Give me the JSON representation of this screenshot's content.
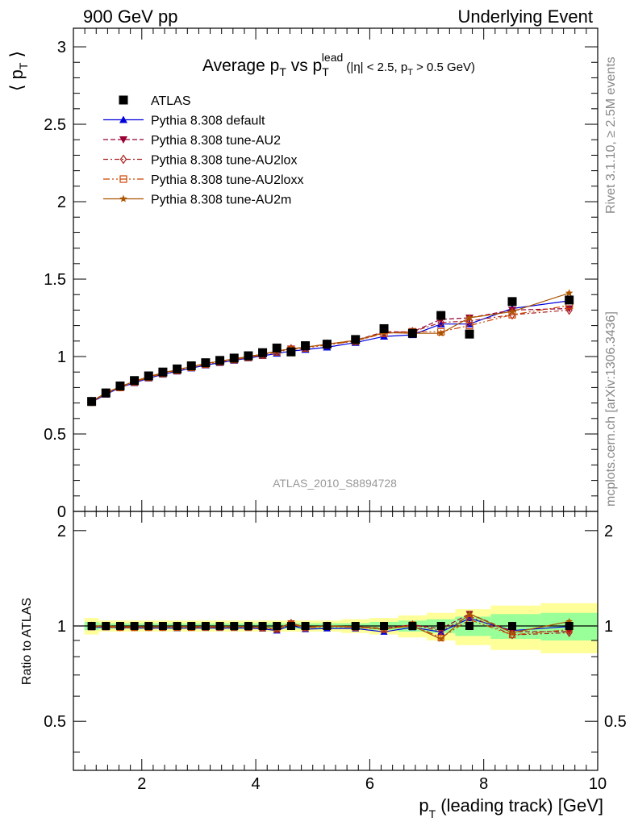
{
  "header": {
    "left": "900 GeV pp",
    "right": "Underlying Event"
  },
  "side_labels": {
    "upper": "Rivet 3.1.10, ≥ 2.5M events",
    "lower": "mcplots.cern.ch [arXiv:1306.3436]"
  },
  "watermark": "ATLAS_2010_S8894728",
  "title": {
    "main": "Average p",
    "main_sub": "T",
    "vs": " vs p",
    "vs_sub": "T",
    "vs_sup": "lead",
    "cuts_a": " (|η| < 2.5, p",
    "cuts_sub": "T",
    "cuts_b": " > 0.5 GeV)"
  },
  "ylabel_top": {
    "text": "⟨ p",
    "sub": "T",
    "close": " ⟩"
  },
  "ylabel_bottom": "Ratio to ATLAS",
  "xlabel": {
    "text": "p",
    "sub": "T",
    "rest": " (leading track) [GeV]"
  },
  "legend": [
    {
      "label": "ATLAS"
    },
    {
      "label": "Pythia 8.308 default"
    },
    {
      "label": "Pythia 8.308 tune-AU2"
    },
    {
      "label": "Pythia 8.308 tune-AU2lox"
    },
    {
      "label": "Pythia 8.308 tune-AU2loxx"
    },
    {
      "label": "Pythia 8.308 tune-AU2m"
    }
  ],
  "chart_data": {
    "type": "scatter",
    "x": [
      1.12,
      1.37,
      1.62,
      1.87,
      2.12,
      2.37,
      2.62,
      2.87,
      3.12,
      3.37,
      3.62,
      3.87,
      4.12,
      4.37,
      4.62,
      4.87,
      5.25,
      5.75,
      6.25,
      6.75,
      7.25,
      7.75,
      8.5,
      9.5
    ],
    "xlim": [
      0.8,
      10.0
    ],
    "xticks": [
      2,
      4,
      6,
      8,
      10
    ],
    "ylim_main": [
      0,
      3.12
    ],
    "yticks_main": [
      0,
      0.5,
      1,
      1.5,
      2,
      2.5,
      3
    ],
    "ylim_ratio": [
      0.35,
      2.3
    ],
    "yticks_ratio": [
      0.5,
      1,
      2
    ],
    "grid": false,
    "legend_position": "top-left",
    "bands": {
      "green_half_width": [
        0.03,
        0.02,
        0.02,
        0.02,
        0.02,
        0.02,
        0.02,
        0.02,
        0.02,
        0.02,
        0.02,
        0.02,
        0.02,
        0.02,
        0.02,
        0.02,
        0.02,
        0.02,
        0.03,
        0.04,
        0.05,
        0.07,
        0.09,
        0.1
      ],
      "yellow_half_width": [
        0.06,
        0.04,
        0.04,
        0.04,
        0.04,
        0.04,
        0.04,
        0.04,
        0.04,
        0.04,
        0.04,
        0.04,
        0.04,
        0.04,
        0.04,
        0.04,
        0.04,
        0.05,
        0.06,
        0.08,
        0.1,
        0.13,
        0.16,
        0.18
      ]
    },
    "series": [
      {
        "name": "ATLAS",
        "marker": "square",
        "color": "#000000",
        "line": "none",
        "values": [
          0.71,
          0.765,
          0.81,
          0.845,
          0.875,
          0.9,
          0.92,
          0.94,
          0.96,
          0.975,
          0.99,
          1.005,
          1.025,
          1.055,
          1.03,
          1.07,
          1.08,
          1.11,
          1.18,
          1.15,
          1.265,
          1.145,
          1.355,
          1.365
        ],
        "ratio": [
          1,
          1,
          1,
          1,
          1,
          1,
          1,
          1,
          1,
          1,
          1,
          1,
          1,
          1,
          1,
          1,
          1,
          1,
          1,
          1,
          1,
          1,
          1,
          1
        ]
      },
      {
        "name": "Pythia 8.308 default",
        "marker": "triangle-up",
        "color": "#0000dd",
        "line": "solid",
        "values": [
          0.705,
          0.755,
          0.8,
          0.83,
          0.86,
          0.885,
          0.905,
          0.925,
          0.945,
          0.96,
          0.975,
          0.99,
          1.005,
          1.02,
          1.035,
          1.045,
          1.06,
          1.09,
          1.13,
          1.14,
          1.21,
          1.21,
          1.31,
          1.36
        ],
        "ratio": [
          0.99,
          0.99,
          0.988,
          0.985,
          0.985,
          0.985,
          0.984,
          0.985,
          0.985,
          0.985,
          0.985,
          0.985,
          0.98,
          0.967,
          1.005,
          0.977,
          0.982,
          0.982,
          0.958,
          0.99,
          0.957,
          1.057,
          0.967,
          0.996
        ]
      },
      {
        "name": "Pythia 8.308 tune-AU2",
        "marker": "triangle-down",
        "color": "#990033",
        "line": "dashed",
        "values": [
          0.71,
          0.765,
          0.805,
          0.84,
          0.87,
          0.895,
          0.915,
          0.935,
          0.955,
          0.97,
          0.985,
          1.0,
          1.015,
          1.035,
          1.05,
          1.06,
          1.08,
          1.105,
          1.16,
          1.16,
          1.24,
          1.25,
          1.3,
          1.31
        ],
        "ratio": [
          1.0,
          1.0,
          0.994,
          0.994,
          0.994,
          0.994,
          0.995,
          0.995,
          0.995,
          0.995,
          0.995,
          0.995,
          0.99,
          0.981,
          1.02,
          0.991,
          1.0,
          0.995,
          0.983,
          1.009,
          0.98,
          1.092,
          0.959,
          0.96
        ]
      },
      {
        "name": "Pythia 8.308 tune-AU2lox",
        "marker": "diamond-open",
        "color": "#aa2222",
        "line": "dashdot",
        "values": [
          0.71,
          0.765,
          0.805,
          0.84,
          0.87,
          0.895,
          0.915,
          0.935,
          0.955,
          0.97,
          0.985,
          1.0,
          1.015,
          1.035,
          1.05,
          1.06,
          1.08,
          1.1,
          1.155,
          1.16,
          1.22,
          1.23,
          1.27,
          1.3
        ],
        "ratio": [
          1.0,
          1.0,
          0.994,
          0.994,
          0.994,
          0.994,
          0.995,
          0.995,
          0.995,
          0.995,
          0.995,
          0.995,
          0.99,
          0.981,
          1.02,
          0.991,
          1.0,
          0.991,
          0.979,
          1.009,
          0.964,
          1.074,
          0.937,
          0.952
        ]
      },
      {
        "name": "Pythia 8.308 tune-AU2loxx",
        "marker": "square-open",
        "color": "#cc4400",
        "line": "dashdotdot",
        "values": [
          0.705,
          0.76,
          0.8,
          0.835,
          0.865,
          0.89,
          0.91,
          0.93,
          0.95,
          0.965,
          0.98,
          0.995,
          1.01,
          1.03,
          1.045,
          1.055,
          1.075,
          1.1,
          1.15,
          1.16,
          1.16,
          1.2,
          1.27,
          1.33
        ],
        "ratio": [
          0.993,
          0.993,
          0.988,
          0.988,
          0.989,
          0.989,
          0.989,
          0.989,
          0.99,
          0.99,
          0.99,
          0.99,
          0.985,
          0.976,
          1.015,
          0.986,
          0.995,
          0.991,
          0.975,
          1.009,
          0.917,
          1.048,
          0.937,
          0.974
        ]
      },
      {
        "name": "Pythia 8.308 tune-AU2m",
        "marker": "star",
        "color": "#aa5500",
        "line": "solid",
        "values": [
          0.71,
          0.765,
          0.805,
          0.84,
          0.87,
          0.895,
          0.915,
          0.935,
          0.955,
          0.97,
          0.985,
          1.0,
          1.015,
          1.035,
          1.05,
          1.06,
          1.08,
          1.105,
          1.155,
          1.15,
          1.15,
          1.25,
          1.29,
          1.41
        ],
        "ratio": [
          1.0,
          1.0,
          0.994,
          0.994,
          0.994,
          0.994,
          0.995,
          0.995,
          0.995,
          0.995,
          0.995,
          0.995,
          0.99,
          0.981,
          1.02,
          0.991,
          1.0,
          0.995,
          0.979,
          1.0,
          0.909,
          1.092,
          0.952,
          1.033
        ]
      }
    ]
  }
}
